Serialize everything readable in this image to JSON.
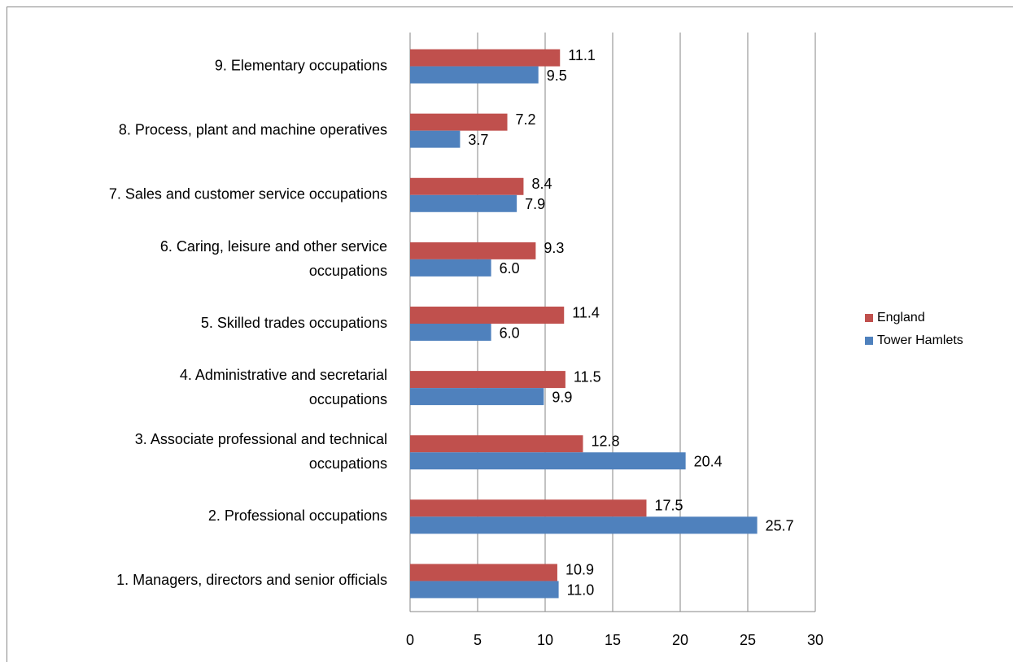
{
  "chart_data": {
    "type": "hbar",
    "categories": [
      "1. Managers, directors and senior officials",
      "2. Professional occupations",
      "3. Associate professional and technical\noccupations",
      "4. Administrative and secretarial\noccupations",
      "5. Skilled trades occupations",
      "6. Caring, leisure and other service\noccupations",
      "7. Sales and customer service occupations",
      "8. Process, plant and machine operatives",
      "9. Elementary occupations"
    ],
    "series": [
      {
        "name": "England",
        "color": "#c0504d",
        "values": [
          10.9,
          17.5,
          12.8,
          11.5,
          11.4,
          9.3,
          8.4,
          7.2,
          11.1
        ],
        "value_labels": [
          "10.9",
          "17.5",
          "12.8",
          "11.5",
          "11.4",
          "9.3",
          "8.4",
          "7.2",
          "11.1"
        ]
      },
      {
        "name": "Tower Hamlets",
        "color": "#4f81bd",
        "values": [
          11.0,
          25.7,
          20.4,
          9.9,
          6.0,
          6.0,
          7.9,
          3.7,
          9.5
        ],
        "value_labels": [
          "11.0",
          "25.7",
          "20.4",
          "9.9",
          "6.0",
          "6.0",
          "7.9",
          "3.7",
          "9.5"
        ]
      }
    ],
    "xlim": [
      0,
      30
    ],
    "xticks": [
      0,
      5,
      10,
      15,
      20,
      25,
      30
    ],
    "grid": true,
    "legend": "right"
  }
}
